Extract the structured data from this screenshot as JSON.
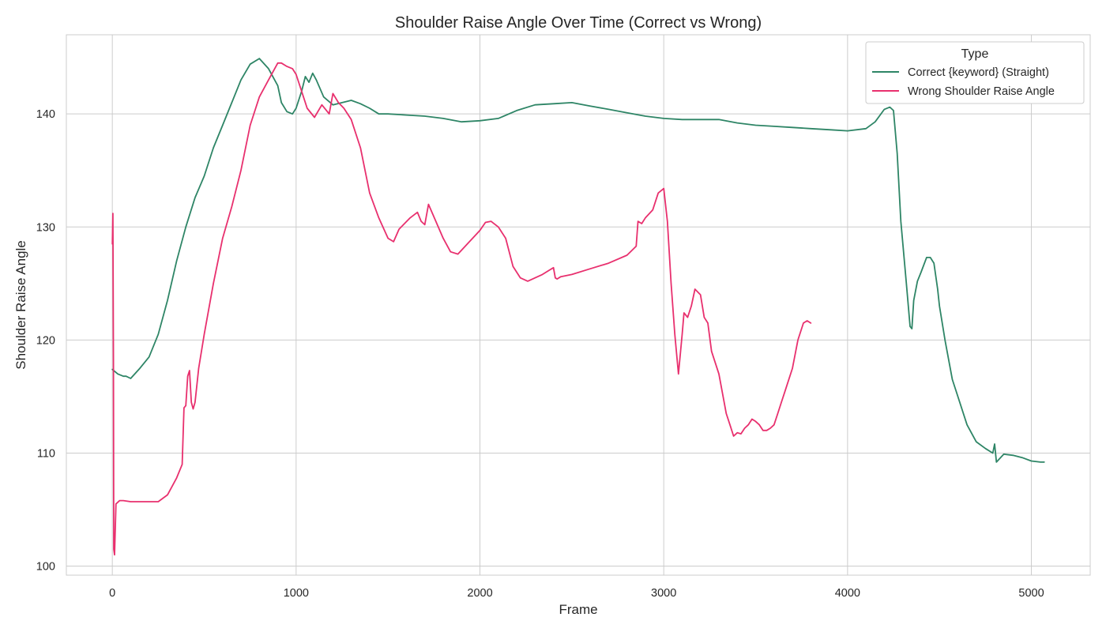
{
  "chart_data": {
    "type": "line",
    "title": "Shoulder Raise Angle Over Time (Correct vs Wrong)",
    "xlabel": "Frame",
    "ylabel": "Shoulder Raise Angle",
    "xlim": [
      -250,
      5320
    ],
    "ylim": [
      99.2,
      147.0
    ],
    "x_ticks": [
      0,
      1000,
      2000,
      3000,
      4000,
      5000
    ],
    "y_ticks": [
      100,
      110,
      120,
      130,
      140
    ],
    "grid": true,
    "legend": {
      "title": "Type",
      "position": "top-right",
      "entries": [
        "Correct {keyword} (Straight)",
        "Wrong Shoulder Raise Angle"
      ]
    },
    "series": [
      {
        "name": "Correct {keyword} (Straight)",
        "color": "#2e8566",
        "x": [
          0,
          30,
          60,
          75,
          100,
          150,
          200,
          250,
          300,
          350,
          400,
          450,
          500,
          550,
          600,
          650,
          700,
          750,
          800,
          850,
          900,
          920,
          950,
          980,
          1000,
          1030,
          1050,
          1070,
          1090,
          1110,
          1150,
          1200,
          1250,
          1300,
          1350,
          1400,
          1450,
          1500,
          1600,
          1700,
          1800,
          1900,
          2000,
          2100,
          2200,
          2300,
          2400,
          2500,
          2600,
          2700,
          2800,
          2900,
          3000,
          3100,
          3200,
          3300,
          3400,
          3500,
          3600,
          3700,
          3800,
          3900,
          4000,
          4100,
          4150,
          4200,
          4230,
          4250,
          4270,
          4290,
          4320,
          4340,
          4350,
          4360,
          4380,
          4400,
          4430,
          4450,
          4470,
          4490,
          4500,
          4530,
          4570,
          4600,
          4650,
          4700,
          4750,
          4790,
          4800,
          4810,
          4850,
          4900,
          4950,
          5000,
          5050,
          5070
        ],
        "values": [
          117.4,
          117.0,
          116.8,
          116.8,
          116.6,
          117.5,
          118.5,
          120.5,
          123.5,
          127.0,
          130.0,
          132.6,
          134.5,
          137.0,
          139.0,
          141.0,
          143.0,
          144.4,
          144.9,
          144.0,
          142.5,
          141.0,
          140.2,
          140.0,
          140.5,
          142.0,
          143.3,
          142.8,
          143.6,
          143.0,
          141.5,
          140.8,
          141.0,
          141.2,
          140.9,
          140.5,
          140.0,
          140.0,
          139.9,
          139.8,
          139.6,
          139.3,
          139.4,
          139.6,
          140.3,
          140.8,
          140.9,
          141.0,
          140.7,
          140.4,
          140.1,
          139.8,
          139.6,
          139.5,
          139.5,
          139.5,
          139.2,
          139.0,
          138.9,
          138.8,
          138.7,
          138.6,
          138.5,
          138.7,
          139.3,
          140.4,
          140.6,
          140.3,
          136.5,
          130.5,
          125.0,
          121.2,
          121.0,
          123.5,
          125.2,
          126.0,
          127.3,
          127.3,
          126.8,
          124.5,
          123.0,
          120.0,
          116.5,
          115.0,
          112.5,
          111.0,
          110.4,
          110.0,
          110.8,
          109.2,
          109.9,
          109.8,
          109.6,
          109.3,
          109.2,
          109.2
        ]
      },
      {
        "name": "Wrong Shoulder Raise Angle",
        "color": "#e8306e",
        "x": [
          0,
          3,
          6,
          8,
          12,
          20,
          40,
          60,
          100,
          200,
          250,
          300,
          350,
          380,
          390,
          400,
          410,
          420,
          430,
          440,
          450,
          470,
          500,
          550,
          600,
          650,
          700,
          750,
          800,
          850,
          900,
          920,
          950,
          980,
          1000,
          1030,
          1060,
          1100,
          1140,
          1160,
          1180,
          1200,
          1230,
          1260,
          1300,
          1350,
          1400,
          1450,
          1500,
          1530,
          1560,
          1620,
          1660,
          1680,
          1700,
          1720,
          1760,
          1800,
          1840,
          1880,
          1920,
          1960,
          2000,
          2030,
          2060,
          2100,
          2140,
          2180,
          2220,
          2260,
          2300,
          2340,
          2380,
          2400,
          2410,
          2420,
          2440,
          2500,
          2600,
          2700,
          2800,
          2850,
          2860,
          2880,
          2900,
          2940,
          2970,
          3000,
          3020,
          3040,
          3060,
          3080,
          3100,
          3110,
          3130,
          3150,
          3170,
          3200,
          3220,
          3240,
          3260,
          3300,
          3340,
          3360,
          3380,
          3400,
          3420,
          3440,
          3460,
          3480,
          3500,
          3520,
          3540,
          3560,
          3580,
          3600,
          3620,
          3640,
          3660,
          3700,
          3730,
          3760,
          3780,
          3800
        ],
        "values": [
          128.5,
          131.2,
          118.0,
          101.5,
          101.0,
          105.5,
          105.8,
          105.8,
          105.7,
          105.7,
          105.7,
          106.3,
          107.8,
          109.0,
          114.0,
          114.2,
          116.8,
          117.3,
          114.5,
          113.9,
          114.5,
          117.5,
          120.5,
          125.0,
          129.0,
          131.8,
          135.0,
          139.0,
          141.5,
          143.0,
          144.5,
          144.5,
          144.2,
          144.0,
          143.5,
          142.0,
          140.5,
          139.7,
          140.8,
          140.4,
          140.0,
          141.8,
          141.0,
          140.5,
          139.5,
          137.0,
          133.0,
          130.8,
          129.0,
          128.7,
          129.8,
          130.8,
          131.3,
          130.5,
          130.2,
          132.0,
          130.5,
          129.0,
          127.8,
          127.6,
          128.3,
          129.0,
          129.7,
          130.4,
          130.5,
          130.0,
          129.0,
          126.5,
          125.5,
          125.2,
          125.5,
          125.8,
          126.2,
          126.4,
          125.5,
          125.4,
          125.6,
          125.8,
          126.3,
          126.8,
          127.5,
          128.3,
          130.5,
          130.3,
          130.8,
          131.5,
          133.0,
          133.4,
          130.5,
          125.0,
          120.5,
          117.0,
          120.5,
          122.4,
          122.0,
          123.0,
          124.5,
          124.0,
          122.0,
          121.5,
          119.0,
          117.0,
          113.5,
          112.5,
          111.5,
          111.8,
          111.7,
          112.2,
          112.5,
          113.0,
          112.8,
          112.5,
          112.0,
          112.0,
          112.2,
          112.5,
          113.5,
          114.5,
          115.5,
          117.5,
          120.0,
          121.5,
          121.7,
          121.5
        ]
      }
    ]
  }
}
